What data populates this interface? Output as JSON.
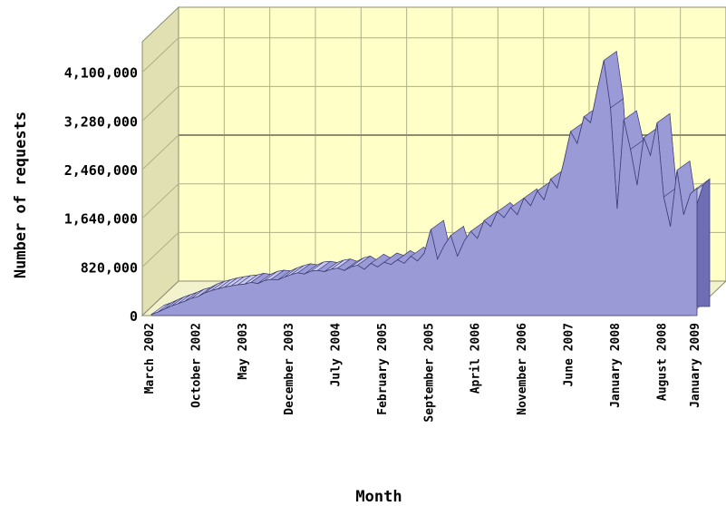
{
  "chart_data": {
    "type": "area",
    "title": "",
    "xlabel": "Month",
    "ylabel": "Number of requests",
    "ylim": [
      0,
      4500000
    ],
    "yticks": [
      {
        "value": 0,
        "label": "0"
      },
      {
        "value": 820000,
        "label": "820,000"
      },
      {
        "value": 1640000,
        "label": "1,640,000"
      },
      {
        "value": 2460000,
        "label": "2,460,000"
      },
      {
        "value": 3280000,
        "label": "3,280,000"
      },
      {
        "value": 4100000,
        "label": "4,100,000"
      }
    ],
    "xticks": [
      {
        "index": 0,
        "label": "March 2002"
      },
      {
        "index": 7,
        "label": "October 2002"
      },
      {
        "index": 14,
        "label": "May 2003"
      },
      {
        "index": 21,
        "label": "December 2003"
      },
      {
        "index": 28,
        "label": "July 2004"
      },
      {
        "index": 35,
        "label": "February 2005"
      },
      {
        "index": 42,
        "label": "September 2005"
      },
      {
        "index": 49,
        "label": "April 2006"
      },
      {
        "index": 56,
        "label": "November 2006"
      },
      {
        "index": 63,
        "label": "June 2007"
      },
      {
        "index": 70,
        "label": "January 2008"
      },
      {
        "index": 77,
        "label": "August 2008"
      },
      {
        "index": 82,
        "label": "January 2009"
      }
    ],
    "values": [
      20000,
      60000,
      110000,
      160000,
      200000,
      240000,
      290000,
      320000,
      380000,
      420000,
      450000,
      480000,
      500000,
      520000,
      530000,
      560000,
      540000,
      590000,
      610000,
      600000,
      650000,
      690000,
      720000,
      700000,
      750000,
      760000,
      740000,
      780000,
      800000,
      760000,
      820000,
      850000,
      780000,
      880000,
      820000,
      900000,
      860000,
      940000,
      880000,
      1000000,
      920000,
      1050000,
      1450000,
      950000,
      1180000,
      1350000,
      1000000,
      1250000,
      1420000,
      1300000,
      1600000,
      1500000,
      1750000,
      1650000,
      1820000,
      1700000,
      1980000,
      1850000,
      2100000,
      1950000,
      2300000,
      2150000,
      2600000,
      3100000,
      2900000,
      3350000,
      3250000,
      3800000,
      4300000,
      3500000,
      1800000,
      3300000,
      2800000,
      2200000,
      3000000,
      2700000,
      3250000,
      2000000,
      1500000,
      2450000,
      1700000,
      2050000,
      2150000
    ],
    "grid": true,
    "legend": "none",
    "colors": {
      "fill": "#9a9ad6",
      "fill_dark": "#6e6eb4",
      "fill_light": "#c8c8ee",
      "back_wall": "#ffffc8",
      "side_wall": "#e0e0b2",
      "floor": "#f2f2cc",
      "grid": "#b0b088",
      "major_line": "#8c8c70"
    }
  }
}
